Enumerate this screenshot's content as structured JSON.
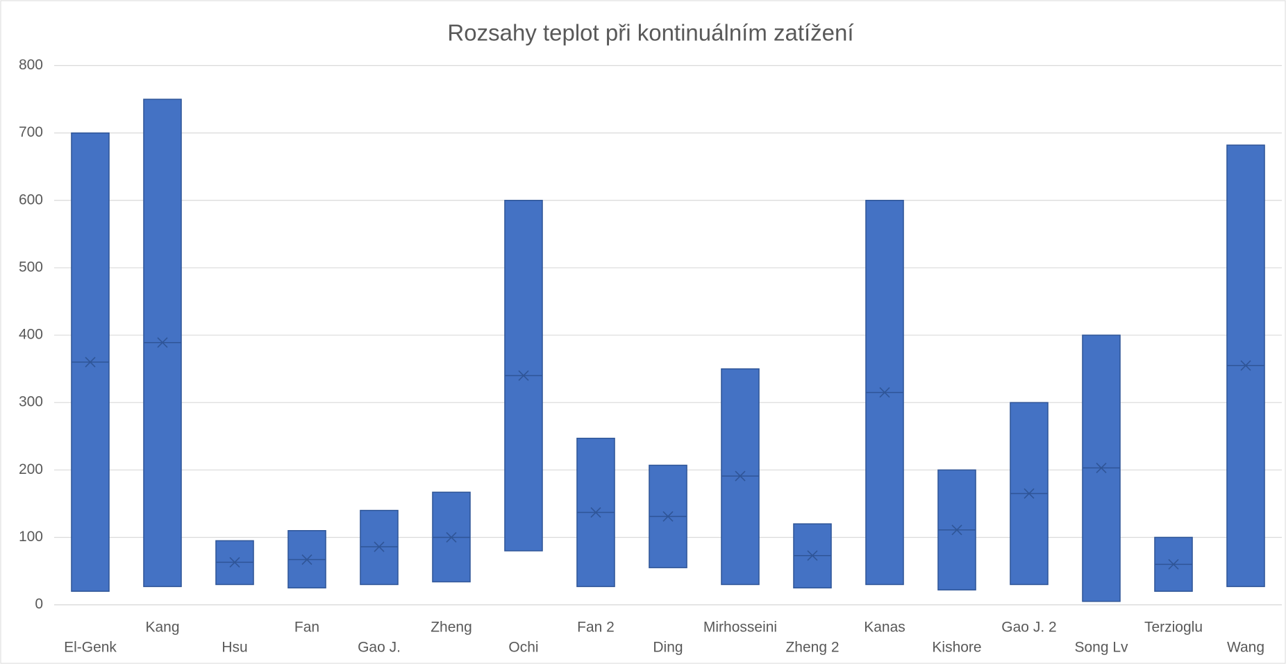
{
  "chart_data": {
    "type": "box",
    "title": "Rozsahy teplot při kontinuálním zatížení",
    "categories": [
      "El-Genk",
      "Kang",
      "Hsu",
      "Fan",
      "Gao J.",
      "Zheng",
      "Ochi",
      "Fan 2",
      "Ding",
      "Mirhosseini",
      "Zheng 2",
      "Kanas",
      "Kishore",
      "Gao J. 2",
      "Song Lv",
      "Terzioglu",
      "Wang"
    ],
    "min": [
      20,
      27,
      30,
      25,
      30,
      34,
      80,
      27,
      55,
      30,
      25,
      30,
      22,
      30,
      5,
      20,
      27
    ],
    "max": [
      700,
      750,
      95,
      110,
      140,
      167,
      600,
      247,
      207,
      350,
      120,
      600,
      200,
      300,
      400,
      100,
      682
    ],
    "median": [
      360,
      389,
      63,
      67,
      86,
      100,
      340,
      137,
      131,
      191,
      73,
      315,
      111,
      165,
      203,
      60,
      355
    ],
    "mean": [
      360,
      389,
      63,
      67,
      86,
      100,
      340,
      137,
      131,
      191,
      73,
      315,
      111,
      165,
      203,
      60,
      355
    ],
    "color": "#4472c4",
    "edge_color": "#2f5597",
    "ylim": [
      0,
      800
    ],
    "yticks": [
      0,
      100,
      200,
      300,
      400,
      500,
      600,
      700,
      800
    ],
    "grid": true
  }
}
